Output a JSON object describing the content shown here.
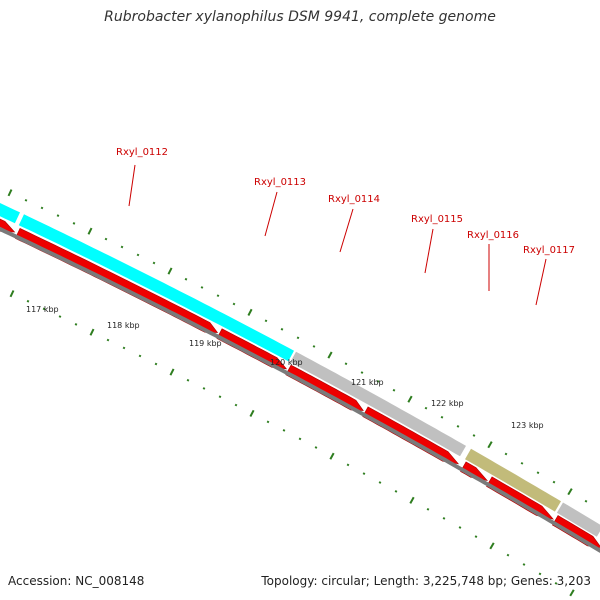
{
  "title": "Rubrobacter xylanophilus DSM 9941, complete genome",
  "accession_label": "Accession: NC_008148",
  "summary_label": "Topology: circular; Length: 3,225,748 bp; Genes: 3,203",
  "colors": {
    "background": "#ffffff",
    "cds_arrow": "#ee0000",
    "cyan_region": "#00ffff",
    "grey_region": "#c0c0c0",
    "olive_region": "#c2bb7a",
    "tick": "#2e7d1f",
    "genome_line": "#7a7a7a",
    "label": "#cc0000"
  },
  "gene_labels": [
    "Rxyl_0112",
    "Rxyl_0113",
    "Rxyl_0114",
    "Rxyl_0115",
    "Rxyl_0116",
    "Rxyl_0117"
  ],
  "kbp_labels": [
    "117 kbp",
    "118 kbp",
    "119 kbp",
    "120 kbp",
    "121 kbp",
    "122 kbp",
    "123 kbp"
  ]
}
